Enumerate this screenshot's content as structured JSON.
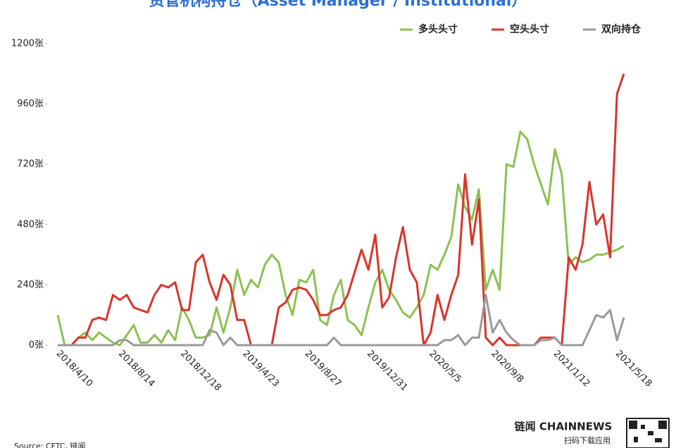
{
  "chart_data": {
    "type": "line",
    "title": "资管机构持仓（Asset Manager / Institutional）",
    "categories": [
      "2018/4/10",
      null,
      null,
      null,
      null,
      null,
      null,
      null,
      null,
      "2018/8/14",
      null,
      null,
      null,
      null,
      null,
      null,
      null,
      null,
      "2018/12/18",
      null,
      null,
      null,
      null,
      null,
      null,
      null,
      null,
      "2019/4/23",
      null,
      null,
      null,
      null,
      null,
      null,
      null,
      null,
      "2019/8/27",
      null,
      null,
      null,
      null,
      null,
      null,
      null,
      null,
      "2019/12/31",
      null,
      null,
      null,
      null,
      null,
      null,
      null,
      null,
      "2020/5/5",
      null,
      null,
      null,
      null,
      null,
      null,
      null,
      null,
      "2020/9/8",
      null,
      null,
      null,
      null,
      null,
      null,
      null,
      null,
      "2021/1/12",
      null,
      null,
      null,
      null,
      null,
      null,
      null,
      null,
      "2021/5/18",
      null
    ],
    "series": [
      {
        "name": "多头头寸",
        "color": "#8cc152",
        "values": [
          120,
          0,
          0,
          30,
          50,
          20,
          50,
          30,
          10,
          0,
          40,
          80,
          10,
          10,
          40,
          10,
          60,
          20,
          150,
          100,
          30,
          30,
          40,
          150,
          50,
          150,
          300,
          200,
          260,
          230,
          320,
          360,
          330,
          200,
          120,
          260,
          250,
          300,
          100,
          80,
          200,
          260,
          100,
          80,
          40,
          150,
          250,
          300,
          220,
          180,
          130,
          110,
          150,
          200,
          320,
          300,
          360,
          430,
          640,
          550,
          500,
          620,
          220,
          300,
          220,
          720,
          710,
          850,
          820,
          720,
          640,
          560,
          780,
          680,
          320,
          350,
          330,
          340,
          360,
          360,
          370,
          380,
          395
        ]
      },
      {
        "name": "空头头寸",
        "color": "#d9342b",
        "values": [
          0,
          0,
          0,
          30,
          30,
          100,
          110,
          100,
          200,
          180,
          200,
          150,
          140,
          130,
          200,
          240,
          230,
          250,
          140,
          140,
          330,
          360,
          250,
          180,
          280,
          240,
          100,
          100,
          0,
          0,
          0,
          0,
          150,
          170,
          220,
          230,
          220,
          180,
          120,
          120,
          140,
          150,
          200,
          290,
          380,
          300,
          440,
          150,
          190,
          350,
          470,
          300,
          250,
          0,
          50,
          200,
          100,
          200,
          280,
          680,
          400,
          580,
          30,
          0,
          30,
          0,
          0,
          0,
          0,
          0,
          30,
          30,
          30,
          0,
          350,
          300,
          400,
          650,
          480,
          520,
          350,
          1000,
          1080
        ]
      },
      {
        "name": "双向持仓",
        "color": "#9a9a9a",
        "values": [
          0,
          0,
          0,
          0,
          0,
          0,
          0,
          0,
          0,
          20,
          20,
          0,
          0,
          0,
          0,
          0,
          0,
          0,
          0,
          0,
          0,
          0,
          60,
          50,
          0,
          30,
          0,
          0,
          0,
          0,
          0,
          0,
          0,
          0,
          0,
          0,
          0,
          0,
          0,
          0,
          30,
          0,
          0,
          0,
          0,
          0,
          0,
          0,
          0,
          0,
          0,
          0,
          0,
          0,
          0,
          0,
          20,
          20,
          40,
          0,
          30,
          30,
          200,
          50,
          100,
          50,
          20,
          0,
          0,
          0,
          20,
          20,
          30,
          0,
          0,
          0,
          0,
          60,
          120,
          110,
          140,
          20,
          110
        ]
      }
    ],
    "ylim": [
      0,
      1200
    ],
    "yticks": [
      {
        "value": 0,
        "label": "0张"
      },
      {
        "value": 240,
        "label": "240张"
      },
      {
        "value": 480,
        "label": "480张"
      },
      {
        "value": 720,
        "label": "720张"
      },
      {
        "value": 960,
        "label": "960张"
      },
      {
        "value": 1200,
        "label": "1200张"
      }
    ],
    "grid": false,
    "legend": "top-right",
    "source": "Source: CFTC, 链闻",
    "logo_text": "链闻 CHAINNEWS",
    "logo_caption": "扫码下载应用"
  }
}
